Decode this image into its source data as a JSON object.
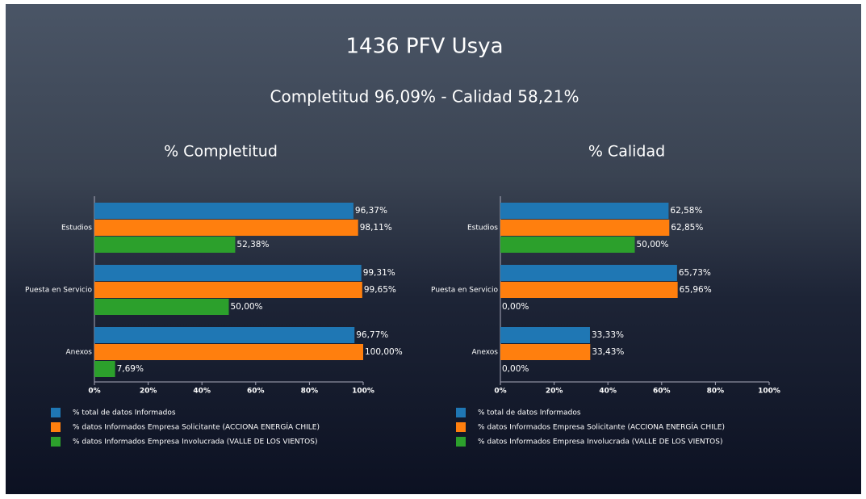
{
  "header": {
    "title": "1436 PFV Usya",
    "subtitle": "Completitud 96,09% - Calidad 58,21%"
  },
  "chart_data": [
    {
      "type": "bar",
      "orientation": "horizontal",
      "title": "% Completitud",
      "categories": [
        "Estudios",
        "Puesta en Servicio",
        "Anexos"
      ],
      "series": [
        {
          "name": "% total de datos Informados",
          "color": "#1f77b4",
          "values": [
            96.37,
            99.31,
            96.77
          ],
          "value_labels": [
            "96,37%",
            "99,31%",
            "96,77%"
          ]
        },
        {
          "name": "% datos Informados Empresa Solicitante (ACCIONA ENERGÍA CHILE)",
          "color": "#ff7f0e",
          "values": [
            98.11,
            99.65,
            100
          ],
          "value_labels": [
            "98,11%",
            "99,65%",
            "100,00%"
          ]
        },
        {
          "name": "% datos Informados Empresa Involucrada (VALLE DE LOS VIENTOS)",
          "color": "#2ca02c",
          "values": [
            52.38,
            50,
            7.69
          ],
          "value_labels": [
            "52,38%",
            "50,00%",
            "7,69%"
          ]
        }
      ],
      "xlim": [
        0,
        100
      ],
      "xticks": [
        {
          "value": 0,
          "label": "0%"
        },
        {
          "value": 20,
          "label": "20%"
        },
        {
          "value": 40,
          "label": "40%"
        },
        {
          "value": 60,
          "label": "60%"
        },
        {
          "value": 80,
          "label": "80%"
        },
        {
          "value": 100,
          "label": "100%"
        }
      ],
      "legend": "bottom"
    },
    {
      "type": "bar",
      "orientation": "horizontal",
      "title": "% Calidad",
      "categories": [
        "Estudios",
        "Puesta en Servicio",
        "Anexos"
      ],
      "series": [
        {
          "name": "% total de datos Informados",
          "color": "#1f77b4",
          "values": [
            62.58,
            65.73,
            33.33
          ],
          "value_labels": [
            "62,58%",
            "65,73%",
            "33,33%"
          ]
        },
        {
          "name": "% datos Informados Empresa Solicitante (ACCIONA ENERGÍA CHILE)",
          "color": "#ff7f0e",
          "values": [
            62.85,
            65.96,
            33.43
          ],
          "value_labels": [
            "62,85%",
            "65,96%",
            "33,43%"
          ]
        },
        {
          "name": "% datos Informados Empresa Involucrada (VALLE DE LOS VIENTOS)",
          "color": "#2ca02c",
          "values": [
            50,
            0,
            0
          ],
          "value_labels": [
            "50,00%",
            "0,00%",
            "0,00%"
          ]
        }
      ],
      "xlim": [
        0,
        100
      ],
      "xticks": [
        {
          "value": 0,
          "label": "0%"
        },
        {
          "value": 20,
          "label": "20%"
        },
        {
          "value": 40,
          "label": "40%"
        },
        {
          "value": 60,
          "label": "60%"
        },
        {
          "value": 80,
          "label": "80%"
        },
        {
          "value": 100,
          "label": "100%"
        }
      ],
      "legend": "bottom"
    }
  ]
}
